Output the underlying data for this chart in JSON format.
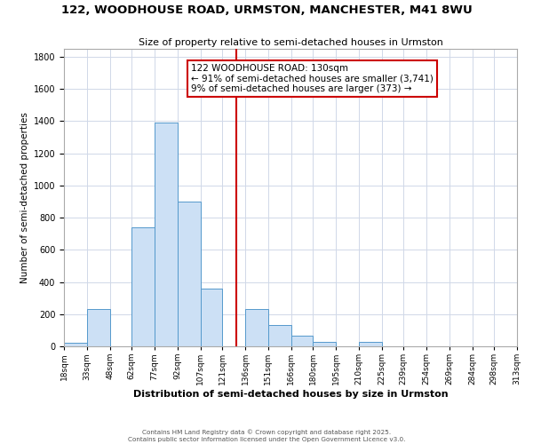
{
  "title": "122, WOODHOUSE ROAD, URMSTON, MANCHESTER, M41 8WU",
  "subtitle": "Size of property relative to semi-detached houses in Urmston",
  "xlabel": "Distribution of semi-detached houses by size in Urmston",
  "ylabel": "Number of semi-detached properties",
  "bin_labels": [
    "18sqm",
    "33sqm",
    "48sqm",
    "62sqm",
    "77sqm",
    "92sqm",
    "107sqm",
    "121sqm",
    "136sqm",
    "151sqm",
    "166sqm",
    "180sqm",
    "195sqm",
    "210sqm",
    "225sqm",
    "239sqm",
    "254sqm",
    "269sqm",
    "284sqm",
    "298sqm",
    "313sqm"
  ],
  "bin_edges": [
    18,
    33,
    48,
    62,
    77,
    92,
    107,
    121,
    136,
    151,
    166,
    180,
    195,
    210,
    225,
    239,
    254,
    269,
    284,
    298,
    313
  ],
  "bar_heights": [
    20,
    230,
    0,
    740,
    1390,
    900,
    360,
    0,
    230,
    130,
    65,
    30,
    0,
    30,
    0,
    0,
    0,
    0,
    0,
    0
  ],
  "bar_color": "#cce0f5",
  "bar_edge_color": "#5599cc",
  "property_size": 130,
  "vline_color": "#cc0000",
  "annotation_title": "122 WOODHOUSE ROAD: 130sqm",
  "annotation_line1": "← 91% of semi-detached houses are smaller (3,741)",
  "annotation_line2": "9% of semi-detached houses are larger (373) →",
  "annotation_box_color": "#ffffff",
  "annotation_box_edge": "#cc0000",
  "ylim": [
    0,
    1850
  ],
  "yticks": [
    0,
    200,
    400,
    600,
    800,
    1000,
    1200,
    1400,
    1600,
    1800
  ],
  "footer1": "Contains HM Land Registry data © Crown copyright and database right 2025.",
  "footer2": "Contains public sector information licensed under the Open Government Licence v3.0.",
  "background_color": "#ffffff",
  "grid_color": "#d0d8e8"
}
